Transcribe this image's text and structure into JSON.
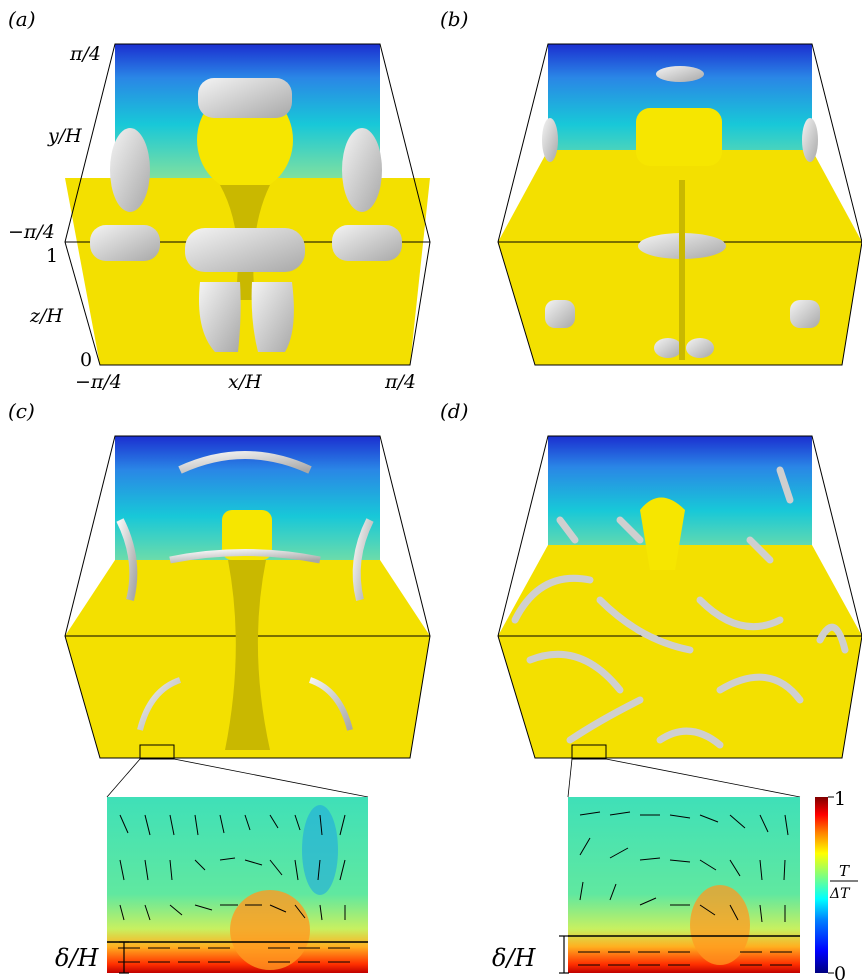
{
  "panels": {
    "a": "(a)",
    "b": "(b)",
    "c": "(c)",
    "d": "(d)"
  },
  "axes": {
    "y_top": "π/4",
    "y_label": "y/H",
    "y_bottom": "−π/4",
    "z_top": "1",
    "z_label": "z/H",
    "z_bottom": "0",
    "x_left": "−π/4",
    "x_label": "x/H",
    "x_right": "π/4"
  },
  "zoom_labels": {
    "left_delta": "δ/H",
    "right_delta": "δ/H"
  },
  "colorbar": {
    "max": "1",
    "min": "0",
    "label_num": "T",
    "label_den": "ΔT",
    "colors": [
      "#00007f",
      "#0000ff",
      "#007fff",
      "#00ffff",
      "#7fff7f",
      "#ffff00",
      "#ff7f00",
      "#ff0000",
      "#7f0000"
    ]
  },
  "colors": {
    "surface_yellow": "#f5e600",
    "vortex_gray": "#d8d8d8",
    "background_green": "#5fe6a0"
  }
}
